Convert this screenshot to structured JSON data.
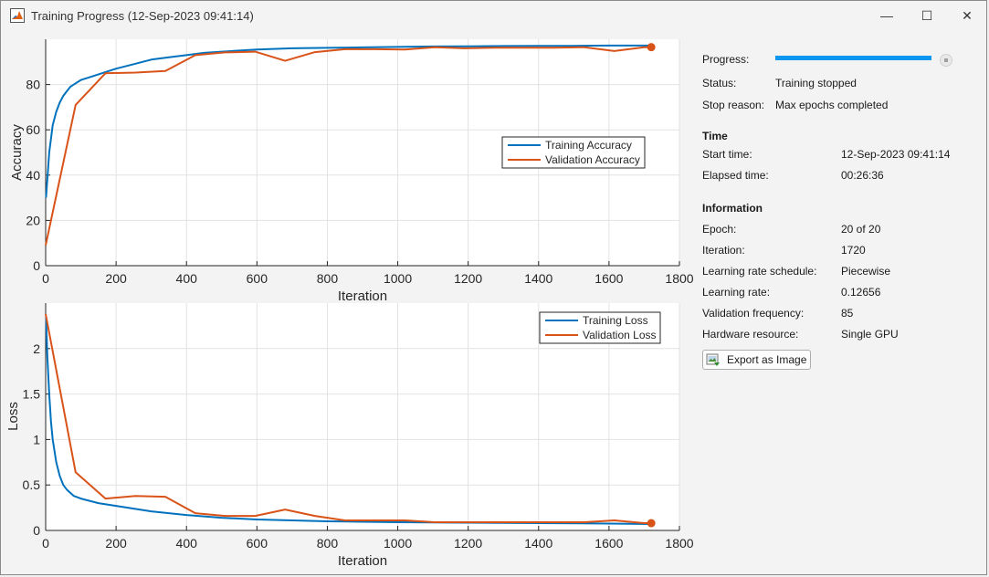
{
  "window": {
    "title": "Training Progress (12-Sep-2023 09:41:14)",
    "minimize": "—",
    "maximize": "☐",
    "close": "✕"
  },
  "colors": {
    "training": "#0072bd",
    "validation": "#d95319",
    "progress": "#0b96f0"
  },
  "chart_data": [
    {
      "type": "line",
      "xlabel": "Iteration",
      "ylabel": "Accuracy",
      "xlim": [
        0,
        1800
      ],
      "ylim": [
        0,
        100
      ],
      "xticks": [
        0,
        200,
        400,
        600,
        800,
        1000,
        1200,
        1400,
        1600,
        1800
      ],
      "yticks": [
        0,
        20,
        40,
        60,
        80
      ],
      "grid": true,
      "legend": "center-right",
      "series": [
        {
          "name": "Training Accuracy",
          "x": [
            1,
            10,
            20,
            30,
            40,
            50,
            60,
            70,
            80,
            100,
            120,
            140,
            160,
            180,
            200,
            250,
            300,
            350,
            400,
            450,
            500,
            550,
            600,
            700,
            800,
            900,
            1000,
            1100,
            1200,
            1300,
            1400,
            1500,
            1600,
            1720
          ],
          "y": [
            30,
            50,
            62,
            68,
            72,
            75,
            77,
            79,
            80,
            82,
            83,
            84,
            85,
            86,
            87,
            89,
            91,
            92,
            93,
            94,
            94.5,
            95,
            95.5,
            96,
            96.2,
            96.4,
            96.6,
            96.8,
            96.9,
            97,
            97.1,
            97.1,
            97.2,
            97.2
          ]
        },
        {
          "name": "Validation Accuracy",
          "x": [
            0,
            85,
            170,
            255,
            340,
            425,
            510,
            595,
            680,
            765,
            850,
            935,
            1020,
            1105,
            1190,
            1275,
            1360,
            1445,
            1530,
            1615,
            1700,
            1720
          ],
          "y": [
            9,
            71,
            85,
            85.3,
            86,
            93,
            94.2,
            94.5,
            90.5,
            94.3,
            95.6,
            95.6,
            95.5,
            96.5,
            96,
            96.3,
            96.3,
            96.3,
            96.5,
            94.8,
            96.5,
            96.5
          ]
        }
      ]
    },
    {
      "type": "line",
      "xlabel": "Iteration",
      "ylabel": "Loss",
      "xlim": [
        0,
        1800
      ],
      "ylim": [
        0,
        2.5
      ],
      "xticks": [
        0,
        200,
        400,
        600,
        800,
        1000,
        1200,
        1400,
        1600,
        1800
      ],
      "yticks": [
        0,
        0.5,
        1,
        1.5,
        2
      ],
      "grid": true,
      "legend": "top-right",
      "series": [
        {
          "name": "Training Loss",
          "x": [
            1,
            5,
            10,
            15,
            20,
            30,
            40,
            50,
            60,
            80,
            100,
            150,
            200,
            250,
            300,
            350,
            400,
            500,
            600,
            700,
            800,
            900,
            1000,
            1200,
            1400,
            1600,
            1720
          ],
          "y": [
            2.35,
            1.9,
            1.5,
            1.2,
            1.0,
            0.75,
            0.6,
            0.5,
            0.45,
            0.38,
            0.35,
            0.3,
            0.27,
            0.24,
            0.21,
            0.19,
            0.17,
            0.14,
            0.12,
            0.11,
            0.1,
            0.095,
            0.09,
            0.085,
            0.08,
            0.075,
            0.07
          ]
        },
        {
          "name": "Validation Loss",
          "x": [
            0,
            85,
            170,
            255,
            340,
            425,
            510,
            595,
            680,
            765,
            850,
            935,
            1020,
            1105,
            1190,
            1275,
            1360,
            1445,
            1530,
            1615,
            1700,
            1720
          ],
          "y": [
            2.38,
            0.64,
            0.35,
            0.38,
            0.37,
            0.19,
            0.16,
            0.16,
            0.23,
            0.16,
            0.11,
            0.11,
            0.11,
            0.09,
            0.09,
            0.09,
            0.09,
            0.09,
            0.09,
            0.11,
            0.08,
            0.08
          ]
        }
      ]
    }
  ],
  "panel": {
    "progress_label": "Progress:",
    "progress_fraction": 1.0,
    "status_label": "Status:",
    "status_value": "Training stopped",
    "stop_reason_label": "Stop reason:",
    "stop_reason_value": "Max epochs completed",
    "time_heading": "Time",
    "start_time_label": "Start time:",
    "start_time_value": "12-Sep-2023 09:41:14",
    "elapsed_label": "Elapsed time:",
    "elapsed_value": "00:26:36",
    "info_heading": "Information",
    "epoch_label": "Epoch:",
    "epoch_value": "20 of 20",
    "iteration_label": "Iteration:",
    "iteration_value": "1720",
    "lr_schedule_label": "Learning rate schedule:",
    "lr_schedule_value": "Piecewise",
    "lr_label": "Learning rate:",
    "lr_value": "0.12656",
    "val_freq_label": "Validation frequency:",
    "val_freq_value": "85",
    "hw_label": "Hardware resource:",
    "hw_value": "Single GPU",
    "export_label": "Export as Image"
  }
}
